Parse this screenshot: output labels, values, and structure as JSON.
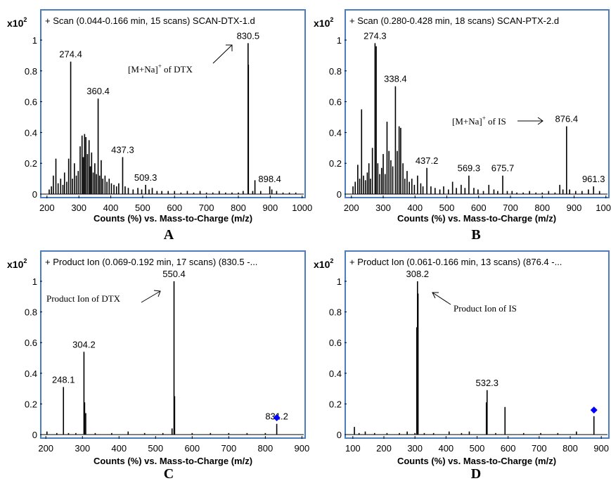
{
  "chart_data": [
    {
      "type": "bar",
      "panel_letter": "A",
      "title": "+ Scan (0.044-0.166 min, 15 scans) SCAN-DTX-1.d",
      "xlabel": "Counts (%) vs. Mass-to-Charge (m/z)",
      "y_multiplier": "x10",
      "y_multiplier_exp": "2",
      "xlim": [
        185,
        1005
      ],
      "ylim": [
        0,
        1.05
      ],
      "xticks": [
        200,
        300,
        400,
        500,
        600,
        700,
        800,
        900,
        1000
      ],
      "yticks": [
        0,
        0.2,
        0.4,
        0.6,
        0.8,
        1
      ],
      "xtick_labels": [
        "200",
        "300",
        "400",
        "500",
        "600",
        "700",
        "800",
        "900",
        "1000"
      ],
      "ytick_labels": [
        "0",
        "0.2",
        "0.4",
        "0.6",
        "0.8",
        "1"
      ],
      "peaks": [
        [
          207,
          0.03
        ],
        [
          214,
          0.05
        ],
        [
          220,
          0.12
        ],
        [
          228,
          0.23
        ],
        [
          235,
          0.07
        ],
        [
          243,
          0.1
        ],
        [
          250,
          0.06
        ],
        [
          255,
          0.14
        ],
        [
          262,
          0.08
        ],
        [
          268,
          0.23
        ],
        [
          274.4,
          0.86
        ],
        [
          280,
          0.1
        ],
        [
          286,
          0.2
        ],
        [
          292,
          0.12
        ],
        [
          298,
          0.15
        ],
        [
          304,
          0.31
        ],
        [
          310,
          0.38
        ],
        [
          314,
          0.24
        ],
        [
          318,
          0.39
        ],
        [
          322,
          0.37
        ],
        [
          327,
          0.26
        ],
        [
          332,
          0.35
        ],
        [
          336,
          0.18
        ],
        [
          340,
          0.27
        ],
        [
          345,
          0.14
        ],
        [
          350,
          0.2
        ],
        [
          355,
          0.13
        ],
        [
          360.4,
          0.62
        ],
        [
          365,
          0.12
        ],
        [
          370,
          0.22
        ],
        [
          375,
          0.1
        ],
        [
          382,
          0.12
        ],
        [
          388,
          0.08
        ],
        [
          395,
          0.1
        ],
        [
          402,
          0.07
        ],
        [
          410,
          0.06
        ],
        [
          418,
          0.05
        ],
        [
          425,
          0.07
        ],
        [
          437.3,
          0.24
        ],
        [
          445,
          0.05
        ],
        [
          455,
          0.04
        ],
        [
          470,
          0.03
        ],
        [
          485,
          0.04
        ],
        [
          497,
          0.03
        ],
        [
          509.3,
          0.06
        ],
        [
          520,
          0.03
        ],
        [
          530,
          0.04
        ],
        [
          545,
          0.02
        ],
        [
          560,
          0.02
        ],
        [
          580,
          0.02
        ],
        [
          600,
          0.02
        ],
        [
          620,
          0.01
        ],
        [
          640,
          0.02
        ],
        [
          660,
          0.01
        ],
        [
          680,
          0.02
        ],
        [
          700,
          0.01
        ],
        [
          720,
          0.01
        ],
        [
          740,
          0.02
        ],
        [
          760,
          0.01
        ],
        [
          780,
          0.01
        ],
        [
          800,
          0.01
        ],
        [
          815,
          0.02
        ],
        [
          830.5,
          0.98
        ],
        [
          831.5,
          0.84
        ],
        [
          845,
          0.02
        ],
        [
          852,
          0.09
        ],
        [
          870,
          0.02
        ],
        [
          898.4,
          0.05
        ],
        [
          905,
          0.03
        ],
        [
          920,
          0.02
        ],
        [
          940,
          0.01
        ],
        [
          960,
          0.01
        ],
        [
          980,
          0.01
        ]
      ],
      "peak_labels": [
        {
          "text": "274.4",
          "x": 274.4,
          "y": 0.86
        },
        {
          "text": "360.4",
          "x": 360.4,
          "y": 0.62
        },
        {
          "text": "437.3",
          "x": 437.3,
          "y": 0.24
        },
        {
          "text": "509.3",
          "x": 509.3,
          "y": 0.06
        },
        {
          "text": "830.5",
          "x": 830.5,
          "y": 0.98
        },
        {
          "text": "898.4",
          "x": 898.4,
          "y": 0.05
        }
      ],
      "annotations": [
        {
          "text": "[M+Na]",
          "sup": "+",
          "tail": " of DTX"
        }
      ],
      "selected_marker": null
    },
    {
      "type": "bar",
      "panel_letter": "B",
      "title": "+ Scan (0.280-0.428 min, 18 scans) SCAN-PTX-2.d",
      "xlabel": "Counts (%) vs. Mass-to-Charge (m/z)",
      "y_multiplier": "x10",
      "y_multiplier_exp": "2",
      "xlim": [
        185,
        1005
      ],
      "ylim": [
        0,
        1.05
      ],
      "xticks": [
        200,
        300,
        400,
        500,
        600,
        700,
        800,
        900,
        1000
      ],
      "yticks": [
        0,
        0.2,
        0.4,
        0.6,
        0.8,
        1
      ],
      "xtick_labels": [
        "200",
        "300",
        "400",
        "500",
        "600",
        "700",
        "800",
        "900",
        "1000"
      ],
      "ytick_labels": [
        "0",
        "0.2",
        "0.4",
        "0.6",
        "0.8",
        "1"
      ],
      "peaks": [
        [
          205,
          0.05
        ],
        [
          212,
          0.08
        ],
        [
          220,
          0.19
        ],
        [
          226,
          0.1
        ],
        [
          232,
          0.55
        ],
        [
          238,
          0.12
        ],
        [
          244,
          0.09
        ],
        [
          250,
          0.14
        ],
        [
          255,
          0.2
        ],
        [
          260,
          0.1
        ],
        [
          266,
          0.3
        ],
        [
          274.3,
          0.98
        ],
        [
          278,
          0.96
        ],
        [
          283,
          0.2
        ],
        [
          289,
          0.13
        ],
        [
          295,
          0.17
        ],
        [
          300,
          0.26
        ],
        [
          306,
          0.13
        ],
        [
          312,
          0.47
        ],
        [
          318,
          0.28
        ],
        [
          324,
          0.22
        ],
        [
          330,
          0.18
        ],
        [
          338.4,
          0.7
        ],
        [
          344,
          0.28
        ],
        [
          350,
          0.44
        ],
        [
          355,
          0.43
        ],
        [
          362,
          0.2
        ],
        [
          368,
          0.1
        ],
        [
          375,
          0.15
        ],
        [
          382,
          0.08
        ],
        [
          390,
          0.1
        ],
        [
          398,
          0.06
        ],
        [
          408,
          0.12
        ],
        [
          418,
          0.07
        ],
        [
          425,
          0.05
        ],
        [
          437.2,
          0.17
        ],
        [
          450,
          0.05
        ],
        [
          463,
          0.04
        ],
        [
          478,
          0.03
        ],
        [
          490,
          0.05
        ],
        [
          505,
          0.03
        ],
        [
          518,
          0.08
        ],
        [
          530,
          0.04
        ],
        [
          545,
          0.06
        ],
        [
          557,
          0.04
        ],
        [
          569.3,
          0.12
        ],
        [
          585,
          0.04
        ],
        [
          598,
          0.03
        ],
        [
          615,
          0.02
        ],
        [
          632,
          0.06
        ],
        [
          648,
          0.03
        ],
        [
          660,
          0.02
        ],
        [
          675.7,
          0.12
        ],
        [
          690,
          0.02
        ],
        [
          705,
          0.02
        ],
        [
          720,
          0.01
        ],
        [
          740,
          0.01
        ],
        [
          760,
          0.02
        ],
        [
          780,
          0.01
        ],
        [
          800,
          0.01
        ],
        [
          820,
          0.02
        ],
        [
          840,
          0.01
        ],
        [
          855,
          0.06
        ],
        [
          865,
          0.03
        ],
        [
          876.4,
          0.44
        ],
        [
          886,
          0.03
        ],
        [
          905,
          0.02
        ],
        [
          925,
          0.02
        ],
        [
          945,
          0.03
        ],
        [
          961.3,
          0.05
        ],
        [
          980,
          0.02
        ]
      ],
      "peak_labels": [
        {
          "text": "274.3",
          "x": 274.3,
          "y": 0.98
        },
        {
          "text": "338.4",
          "x": 338.4,
          "y": 0.7
        },
        {
          "text": "437.2",
          "x": 437.2,
          "y": 0.17
        },
        {
          "text": "569.3",
          "x": 569.3,
          "y": 0.12
        },
        {
          "text": "675.7",
          "x": 675.7,
          "y": 0.12
        },
        {
          "text": "876.4",
          "x": 876.4,
          "y": 0.44
        },
        {
          "text": "961.3",
          "x": 961.3,
          "y": 0.05
        }
      ],
      "annotations": [
        {
          "text": "[M+Na]",
          "sup": "+",
          "tail": " of IS"
        }
      ],
      "selected_marker": null
    },
    {
      "type": "bar",
      "panel_letter": "C",
      "title": "+ Product Ion (0.069-0.192 min, 17 scans) (830.5 -...",
      "xlabel": "Counts (%) vs. Mass-to-Charge (m/z)",
      "y_multiplier": "x10",
      "y_multiplier_exp": "2",
      "xlim": [
        190,
        905
      ],
      "ylim": [
        0,
        1.05
      ],
      "xticks": [
        200,
        300,
        400,
        500,
        600,
        700,
        800,
        900
      ],
      "yticks": [
        0,
        0.2,
        0.4,
        0.6,
        0.8,
        1
      ],
      "xtick_labels": [
        "200",
        "300",
        "400",
        "500",
        "600",
        "700",
        "800",
        "900"
      ],
      "ytick_labels": [
        "0",
        "0.2",
        "0.4",
        "0.6",
        "0.8",
        "1"
      ],
      "peaks": [
        [
          203,
          0.02
        ],
        [
          230,
          0.01
        ],
        [
          248.1,
          0.31
        ],
        [
          262,
          0.01
        ],
        [
          282,
          0.01
        ],
        [
          304.2,
          0.54
        ],
        [
          306,
          0.21
        ],
        [
          309,
          0.14
        ],
        [
          335,
          0.01
        ],
        [
          380,
          0.01
        ],
        [
          425,
          0.02
        ],
        [
          470,
          0.01
        ],
        [
          520,
          0.01
        ],
        [
          545,
          0.04
        ],
        [
          550.4,
          1.0
        ],
        [
          552,
          0.25
        ],
        [
          600,
          0.01
        ],
        [
          650,
          0.01
        ],
        [
          700,
          0.01
        ],
        [
          750,
          0.01
        ],
        [
          800,
          0.01
        ],
        [
          831.2,
          0.07
        ]
      ],
      "peak_labels": [
        {
          "text": "248.1",
          "x": 248.1,
          "y": 0.31
        },
        {
          "text": "304.2",
          "x": 304.2,
          "y": 0.54
        },
        {
          "text": "550.4",
          "x": 550.4,
          "y": 1.0
        },
        {
          "text": "831.2",
          "x": 831.2,
          "y": 0.07
        }
      ],
      "annotations": [
        {
          "text": "Product Ion of  DTX",
          "sup": "",
          "tail": ""
        }
      ],
      "selected_marker": {
        "x": 831.2,
        "y": 0.11,
        "color": "#0000ff"
      }
    },
    {
      "type": "bar",
      "panel_letter": "D",
      "title": "+ Product Ion (0.061-0.166 min, 13 scans) (876.4 -...",
      "xlabel": "Counts (%) vs. Mass-to-Charge (m/z)",
      "y_multiplier": "x10",
      "y_multiplier_exp": "2",
      "xlim": [
        80,
        920
      ],
      "ylim": [
        0,
        1.05
      ],
      "xticks": [
        100,
        200,
        300,
        400,
        500,
        600,
        700,
        800,
        900
      ],
      "yticks": [
        0,
        0.2,
        0.4,
        0.6,
        0.8,
        1
      ],
      "xtick_labels": [
        "100",
        "200",
        "300",
        "400",
        "500",
        "600",
        "700",
        "800",
        "900"
      ],
      "ytick_labels": [
        "0",
        "0.2",
        "0.4",
        "0.6",
        "0.8",
        "1"
      ],
      "peaks": [
        [
          105,
          0.05
        ],
        [
          120,
          0.01
        ],
        [
          140,
          0.02
        ],
        [
          170,
          0.01
        ],
        [
          210,
          0.01
        ],
        [
          250,
          0.01
        ],
        [
          275,
          0.02
        ],
        [
          300,
          0.01
        ],
        [
          306,
          0.7
        ],
        [
          308.2,
          1.0
        ],
        [
          310,
          0.92
        ],
        [
          330,
          0.01
        ],
        [
          360,
          0.01
        ],
        [
          410,
          0.02
        ],
        [
          450,
          0.01
        ],
        [
          475,
          0.02
        ],
        [
          530,
          0.21
        ],
        [
          532.3,
          0.29
        ],
        [
          560,
          0.01
        ],
        [
          590,
          0.18
        ],
        [
          650,
          0.01
        ],
        [
          705,
          0.01
        ],
        [
          760,
          0.01
        ],
        [
          820,
          0.02
        ],
        [
          876.4,
          0.12
        ]
      ],
      "peak_labels": [
        {
          "text": "308.2",
          "x": 308.2,
          "y": 1.0
        },
        {
          "text": "532.3",
          "x": 532.3,
          "y": 0.29
        }
      ],
      "annotations": [
        {
          "text": "Product Ion of  IS",
          "sup": "",
          "tail": ""
        }
      ],
      "selected_marker": {
        "x": 876.4,
        "y": 0.16,
        "color": "#0000ff"
      }
    }
  ]
}
